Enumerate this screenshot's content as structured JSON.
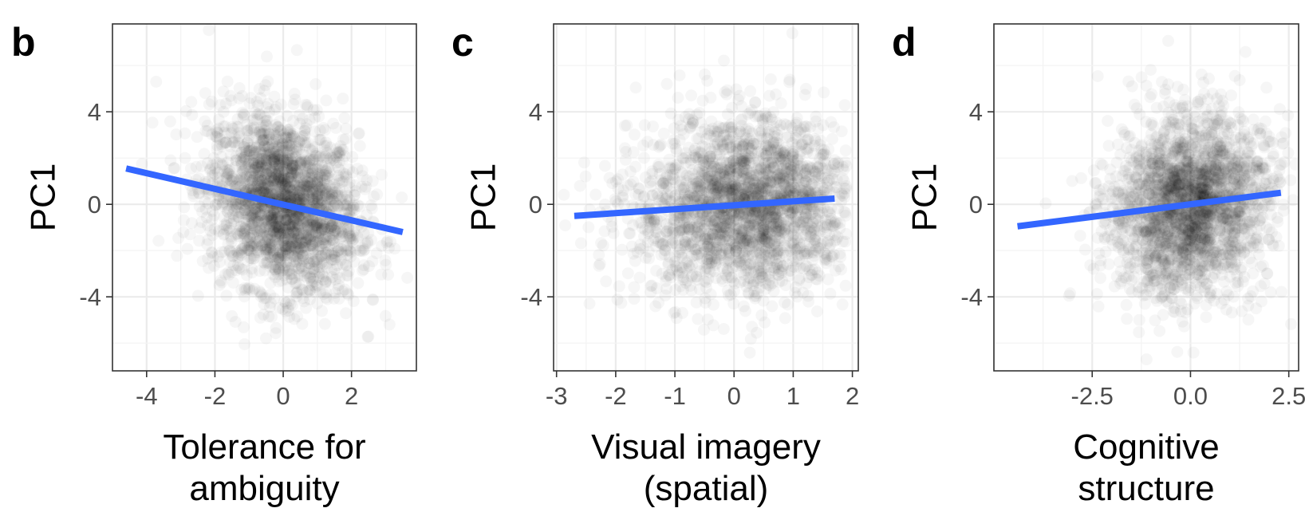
{
  "chart_data": [
    {
      "type": "scatter",
      "panel_label": "b",
      "xlabel": [
        "Tolerance for",
        "ambiguity"
      ],
      "ylabel": "PC1",
      "xlim": [
        -5.0,
        3.9
      ],
      "ylim": [
        -7.2,
        7.8
      ],
      "x_ticks": [
        -4,
        -2,
        0,
        2
      ],
      "x_tick_labels": [
        "-4",
        "-2",
        "0",
        "2"
      ],
      "y_ticks": [
        4,
        0,
        -4
      ],
      "y_tick_labels": [
        "4",
        "0",
        "-4"
      ],
      "point_cloud": {
        "x_center": 0.0,
        "x_sd": 1.1,
        "y_center": 0.0,
        "y_sd": 1.9,
        "slope": -0.35,
        "x_range": [
          -4.5,
          3.8
        ]
      },
      "fit_line": {
        "x": [
          -4.6,
          3.5
        ],
        "y": [
          1.55,
          -1.2
        ],
        "color": "#3366ff"
      },
      "grid": true
    },
    {
      "type": "scatter",
      "panel_label": "c",
      "xlabel": [
        "Visual imagery",
        "(spatial)"
      ],
      "ylabel": "PC1",
      "xlim": [
        -3.05,
        2.1
      ],
      "ylim": [
        -7.2,
        7.8
      ],
      "x_ticks": [
        -3,
        -2,
        -1,
        0,
        1,
        2
      ],
      "x_tick_labels": [
        "-3",
        "-2",
        "-1",
        "0",
        "1",
        "2"
      ],
      "y_ticks": [
        4,
        0,
        -4
      ],
      "y_tick_labels": [
        "4",
        "0",
        "-4"
      ],
      "point_cloud": {
        "x_center": 0.2,
        "x_sd": 0.9,
        "y_center": 0.0,
        "y_sd": 1.9,
        "slope": 0.17,
        "x_range": [
          -2.9,
          1.9
        ]
      },
      "fit_line": {
        "x": [
          -2.7,
          1.7
        ],
        "y": [
          -0.5,
          0.25
        ],
        "color": "#3366ff"
      },
      "grid": true
    },
    {
      "type": "scatter",
      "panel_label": "d",
      "xlabel": [
        "Cognitive",
        "structure"
      ],
      "ylabel": "PC1",
      "xlim": [
        -5.0,
        2.75
      ],
      "ylim": [
        -7.2,
        7.8
      ],
      "x_ticks": [
        -2.5,
        0.0,
        2.5
      ],
      "x_tick_labels": [
        "-2.5",
        "0.0",
        "2.5"
      ],
      "y_ticks": [
        4,
        0,
        -4
      ],
      "y_tick_labels": [
        "4",
        "0",
        "-4"
      ],
      "point_cloud": {
        "x_center": 0.0,
        "x_sd": 1.0,
        "y_center": 0.0,
        "y_sd": 1.9,
        "slope": 0.22,
        "x_range": [
          -4.5,
          2.7
        ]
      },
      "fit_line": {
        "x": [
          -4.4,
          2.3
        ],
        "y": [
          -0.95,
          0.5
        ],
        "color": "#3366ff"
      },
      "grid": true
    }
  ]
}
